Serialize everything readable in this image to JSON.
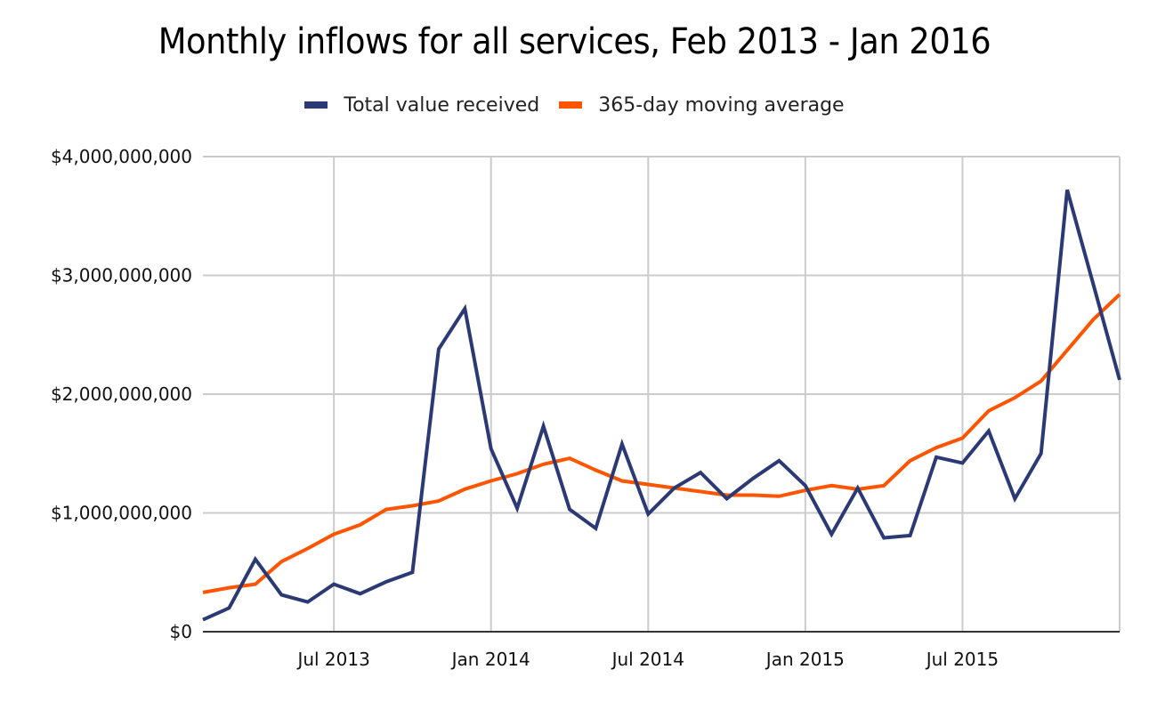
{
  "chart_data": {
    "type": "line",
    "title": "Monthly inflows for all services, Feb 2013 - Jan 2016",
    "xlabel": "",
    "ylabel": "",
    "ylim": [
      0,
      4000000000
    ],
    "grid": true,
    "legend_position": "top-center",
    "y_ticks": [
      {
        "value": 0,
        "label": "$0"
      },
      {
        "value": 1000000000,
        "label": "$1,000,000,000"
      },
      {
        "value": 2000000000,
        "label": "$2,000,000,000"
      },
      {
        "value": 3000000000,
        "label": "$3,000,000,000"
      },
      {
        "value": 4000000000,
        "label": "$4,000,000,000"
      }
    ],
    "x_ticks": [
      {
        "index": 5,
        "label": "Jul 2013"
      },
      {
        "index": 11,
        "label": "Jan 2014"
      },
      {
        "index": 17,
        "label": "Jul 2014"
      },
      {
        "index": 23,
        "label": "Jan 2015"
      },
      {
        "index": 29,
        "label": "Jul 2015"
      }
    ],
    "x": [
      "Feb 2013",
      "Mar 2013",
      "Apr 2013",
      "May 2013",
      "Jun 2013",
      "Jul 2013",
      "Aug 2013",
      "Sep 2013",
      "Oct 2013",
      "Nov 2013",
      "Dec 2013",
      "Jan 2014",
      "Feb 2014",
      "Mar 2014",
      "Apr 2014",
      "May 2014",
      "Jun 2014",
      "Jul 2014",
      "Aug 2014",
      "Sep 2014",
      "Oct 2014",
      "Nov 2014",
      "Dec 2014",
      "Jan 2015",
      "Feb 2015",
      "Mar 2015",
      "Apr 2015",
      "May 2015",
      "Jun 2015",
      "Jul 2015",
      "Aug 2015",
      "Sep 2015",
      "Oct 2015",
      "Nov 2015",
      "Dec 2015",
      "Jan 2016"
    ],
    "series": [
      {
        "name": "Total value received",
        "color": "#2b3a75",
        "values": [
          100000000,
          200000000,
          610000000,
          310000000,
          250000000,
          400000000,
          320000000,
          420000000,
          500000000,
          2380000000,
          2720000000,
          1540000000,
          1040000000,
          1730000000,
          1030000000,
          870000000,
          1580000000,
          990000000,
          1210000000,
          1340000000,
          1120000000,
          1290000000,
          1440000000,
          1230000000,
          820000000,
          1210000000,
          790000000,
          810000000,
          1470000000,
          1420000000,
          1690000000,
          1120000000,
          1500000000,
          3720000000,
          2920000000,
          2120000000
        ]
      },
      {
        "name": "365-day moving average",
        "color": "#ff5500",
        "values": [
          330000000,
          370000000,
          400000000,
          590000000,
          700000000,
          820000000,
          900000000,
          1030000000,
          1060000000,
          1100000000,
          1200000000,
          1270000000,
          1330000000,
          1410000000,
          1460000000,
          1360000000,
          1270000000,
          1240000000,
          1210000000,
          1180000000,
          1150000000,
          1150000000,
          1140000000,
          1190000000,
          1230000000,
          1200000000,
          1230000000,
          1440000000,
          1550000000,
          1630000000,
          1860000000,
          1970000000,
          2110000000,
          2370000000,
          2630000000,
          2840000000
        ]
      }
    ]
  }
}
